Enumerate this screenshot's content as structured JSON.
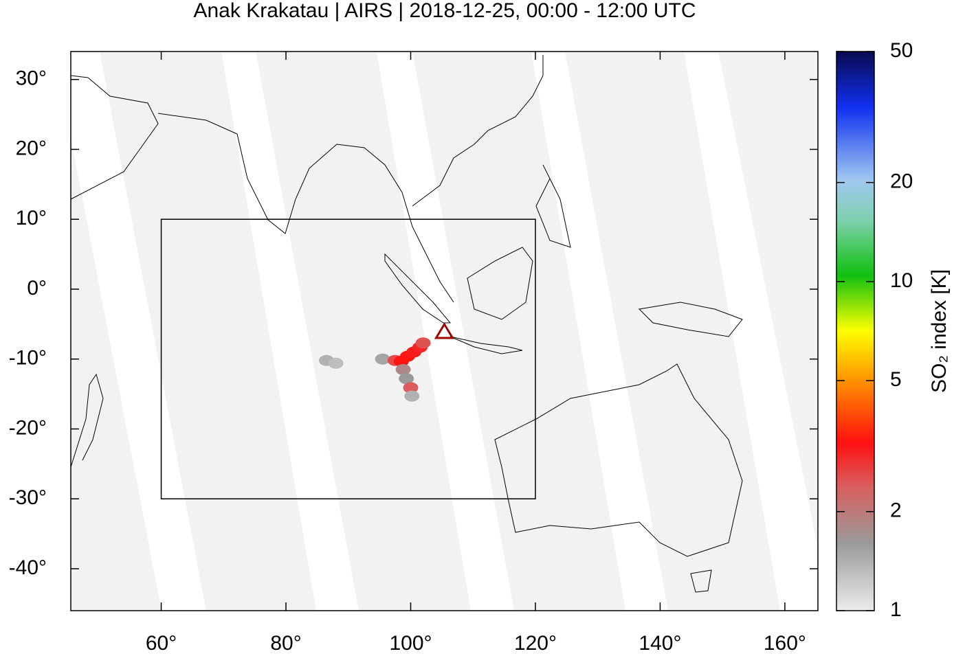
{
  "chart_data": {
    "type": "map",
    "title": "Anak Krakatau | AIRS | 2018-12-25, 00:00 - 12:00 UTC",
    "xlim": [
      45.5,
      165.3
    ],
    "ylim": [
      -46,
      34
    ],
    "xticks": [
      {
        "value": 60,
        "label": "60°"
      },
      {
        "value": 80,
        "label": "80°"
      },
      {
        "value": 100,
        "label": "100°"
      },
      {
        "value": 120,
        "label": "120°"
      },
      {
        "value": 140,
        "label": "140°"
      },
      {
        "value": 160,
        "label": "160°"
      }
    ],
    "yticks": [
      {
        "value": 30,
        "label": "30°"
      },
      {
        "value": 20,
        "label": "20°"
      },
      {
        "value": 10,
        "label": "10°"
      },
      {
        "value": 0,
        "label": "0°"
      },
      {
        "value": -10,
        "label": "-10°"
      },
      {
        "value": -20,
        "label": "-20°"
      },
      {
        "value": -30,
        "label": "-30°"
      },
      {
        "value": -40,
        "label": "-40°"
      }
    ],
    "colorbar": {
      "label": "SO₂ index [K]",
      "lim": [
        1,
        50
      ],
      "log_scale": true,
      "ticks": [
        1,
        2,
        5,
        10,
        20,
        50
      ]
    },
    "box": {
      "lon": [
        60,
        120
      ],
      "lat": [
        -30,
        10
      ]
    },
    "volcano": {
      "lon": 105.4,
      "lat": -6.1,
      "color": "#a00000"
    },
    "plume": [
      {
        "lon": 86.5,
        "lat": -10.2,
        "so2": 1.4
      },
      {
        "lon": 88.0,
        "lat": -10.6,
        "so2": 1.3
      },
      {
        "lon": 95.5,
        "lat": -10.0,
        "so2": 1.5
      },
      {
        "lon": 97.5,
        "lat": -10.2,
        "so2": 2.6
      },
      {
        "lon": 98.5,
        "lat": -10.3,
        "so2": 3.2
      },
      {
        "lon": 99.5,
        "lat": -9.6,
        "so2": 3.3
      },
      {
        "lon": 100.5,
        "lat": -9.0,
        "so2": 3.1
      },
      {
        "lon": 101.5,
        "lat": -8.3,
        "so2": 3.0
      },
      {
        "lon": 102.0,
        "lat": -7.7,
        "so2": 2.5
      },
      {
        "lon": 98.8,
        "lat": -11.5,
        "so2": 1.8
      },
      {
        "lon": 99.3,
        "lat": -12.8,
        "so2": 1.6
      },
      {
        "lon": 100.0,
        "lat": -14.1,
        "so2": 2.4
      },
      {
        "lon": 100.2,
        "lat": -15.3,
        "so2": 1.4
      }
    ]
  }
}
